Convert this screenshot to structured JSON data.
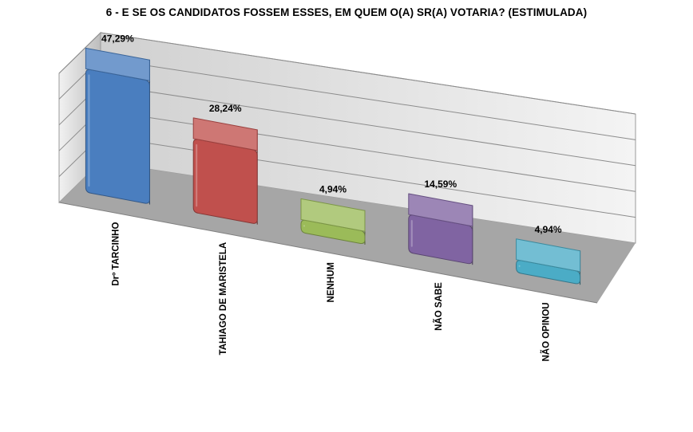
{
  "chart_data": {
    "type": "bar",
    "title": "6 - E SE OS CANDIDATOS FOSSEM ESSES, EM QUEM O(A) SR(A) VOTARIA? (ESTIMULADA)",
    "categories": [
      "Drº TARCINHO",
      "TAHIAGO DE MARISTELA",
      "NENHUM",
      "NÃO SABE",
      "NÃO OPINOU"
    ],
    "values": [
      47.29,
      28.24,
      4.94,
      14.59,
      4.94
    ],
    "value_labels": [
      "47,29%",
      "28,24%",
      "4,94%",
      "14,59%",
      "4,94%"
    ],
    "colors": [
      "#4a7ebf",
      "#c0504d",
      "#9bbb59",
      "#8064a2",
      "#4bacc6"
    ],
    "ylim": [
      0,
      50
    ],
    "grid": true,
    "legend": "none",
    "style": "3d"
  }
}
